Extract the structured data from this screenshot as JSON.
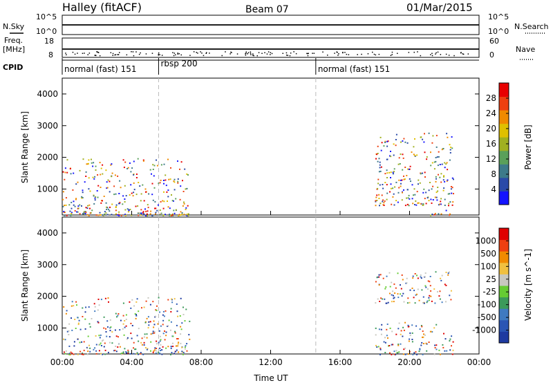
{
  "header": {
    "station": "Halley (fitACF)",
    "beam": "Beam 07",
    "date": "01/Mar/2015"
  },
  "panel_labels": {
    "nsky": "N.Sky",
    "nsearch": "N.Search",
    "freq_line1": "Freq.",
    "freq_line2": "[MHz]",
    "nave": "Nave",
    "cpid": "CPID"
  },
  "noise_axis": {
    "left_ticks": [
      "10^5",
      "10^0"
    ],
    "right_ticks": [
      "10^5",
      "10^0"
    ]
  },
  "freq_axis": {
    "left_ticks": [
      "18",
      "8"
    ],
    "right_ticks": [
      "60",
      "0"
    ]
  },
  "cpid_segments": [
    {
      "label": "normal (fast) 151",
      "start_hour": 0.0
    },
    {
      "label": "rbsp 200",
      "start_hour": 5.55
    },
    {
      "label": "normal (fast) 151",
      "start_hour": 14.6
    }
  ],
  "chart_data": [
    {
      "type": "heatmap",
      "quantity": "Power",
      "xlabel": "",
      "ylabel": "Slant Range [km]",
      "x_unit": "hours UT",
      "xlim": [
        0,
        24
      ],
      "ylim": [
        180,
        4500
      ],
      "yticks": [
        "1000",
        "2000",
        "3000",
        "4000"
      ],
      "colorbar": {
        "label": "Power [dB]",
        "ticks": [
          "28",
          "24",
          "20",
          "16",
          "12",
          "8",
          "4"
        ],
        "colors": [
          "#1414ff",
          "#2a4aa8",
          "#3d7a8a",
          "#5aa05a",
          "#a0b020",
          "#e0c000",
          "#f08a00",
          "#ee4010",
          "#e80000"
        ]
      },
      "echo_regions": [
        {
          "t0": 0.0,
          "t1": 7.3,
          "r0": 180,
          "r1": 2000,
          "dominant": "8-16 dB"
        },
        {
          "t0": 5.0,
          "t1": 7.3,
          "r0": 180,
          "r1": 300,
          "dominant": "24-28 dB"
        },
        {
          "t0": 18.0,
          "t1": 22.5,
          "r0": 500,
          "r1": 2800,
          "dominant": "4-12 dB"
        },
        {
          "t0": 21.0,
          "t1": 23.0,
          "r0": 180,
          "r1": 350,
          "dominant": "16-28 dB"
        }
      ]
    },
    {
      "type": "heatmap",
      "quantity": "Velocity",
      "xlabel": "Time UT",
      "ylabel": "Slant Range [km]",
      "x_unit": "hours UT",
      "xlim": [
        0,
        24
      ],
      "ylim": [
        180,
        4500
      ],
      "xticks": [
        "00:00",
        "04:00",
        "08:00",
        "12:00",
        "16:00",
        "20:00",
        "00:00"
      ],
      "yticks": [
        "1000",
        "2000",
        "3000",
        "4000"
      ],
      "colorbar": {
        "label": "Velocity [m s^-1]",
        "ticks": [
          "1000",
          "500",
          "100",
          "25",
          "-25",
          "-100",
          "-500",
          "-1000"
        ],
        "colors": [
          "#1e3aa0",
          "#2a55b4",
          "#3f7ac0",
          "#3c9a5a",
          "#66cc33",
          "#c8c8c0",
          "#f0c040",
          "#f08a00",
          "#ee4010",
          "#e00000"
        ]
      },
      "echo_regions": [
        {
          "t0": 0.0,
          "t1": 7.3,
          "r0": 180,
          "r1": 2000,
          "dominant": "mixed"
        },
        {
          "t0": 18.0,
          "t1": 22.5,
          "r0": 1800,
          "r1": 2800,
          "dominant": "-25 to 25"
        },
        {
          "t0": 18.0,
          "t1": 22.5,
          "r0": 180,
          "r1": 1200,
          "dominant": "-100 to -500"
        }
      ]
    }
  ],
  "colors": {
    "vertical_markers": "#bbbbbb",
    "axis": "#000000"
  }
}
